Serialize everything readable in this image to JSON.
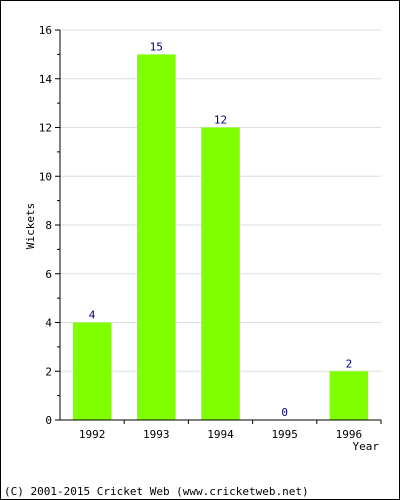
{
  "chart_data": {
    "type": "bar",
    "categories": [
      "1992",
      "1993",
      "1994",
      "1995",
      "1996"
    ],
    "values": [
      4,
      15,
      12,
      0,
      2
    ],
    "data_labels": [
      "4",
      "15",
      "12",
      "0",
      "2"
    ],
    "title": "",
    "xlabel": "Year",
    "ylabel": "Wickets",
    "ylim": [
      0,
      16
    ],
    "yticks": [
      0,
      2,
      4,
      6,
      8,
      10,
      12,
      14,
      16
    ],
    "grid": true,
    "bar_color": "#80ff00",
    "label_color": "#000080"
  },
  "footer": {
    "copyright": "(C) 2001-2015 Cricket Web (www.cricketweb.net)"
  }
}
